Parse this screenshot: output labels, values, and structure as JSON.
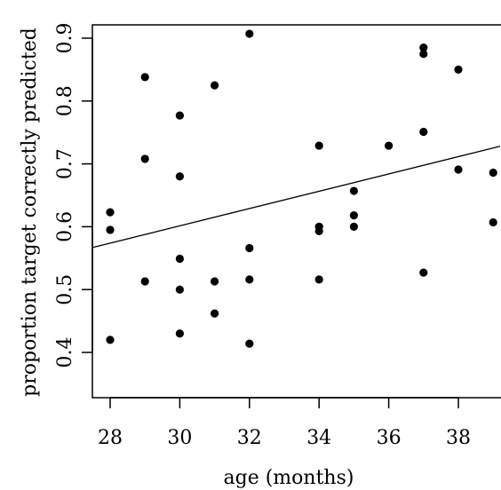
{
  "chart_data": {
    "type": "scatter",
    "xlabel": "age (months)",
    "ylabel": "proportion target correctly predicted",
    "xlim": [
      27.5,
      39.2
    ],
    "ylim": [
      0.33,
      0.925
    ],
    "xticks": [
      28,
      30,
      32,
      34,
      36,
      38
    ],
    "yticks": [
      0.4,
      0.5,
      0.6,
      0.7,
      0.8,
      0.9
    ],
    "xtick_labels": [
      "28",
      "30",
      "32",
      "34",
      "36",
      "38"
    ],
    "ytick_labels": [
      "0.4",
      "0.5",
      "0.6",
      "0.7",
      "0.8",
      "0.9"
    ],
    "grid": false,
    "points": [
      {
        "x": 28,
        "y": 0.623
      },
      {
        "x": 28,
        "y": 0.595
      },
      {
        "x": 28,
        "y": 0.42
      },
      {
        "x": 29,
        "y": 0.838
      },
      {
        "x": 29,
        "y": 0.708
      },
      {
        "x": 29,
        "y": 0.513
      },
      {
        "x": 30,
        "y": 0.777
      },
      {
        "x": 30,
        "y": 0.68
      },
      {
        "x": 30,
        "y": 0.549
      },
      {
        "x": 30,
        "y": 0.5
      },
      {
        "x": 30,
        "y": 0.43
      },
      {
        "x": 31,
        "y": 0.825
      },
      {
        "x": 31,
        "y": 0.513
      },
      {
        "x": 31,
        "y": 0.462
      },
      {
        "x": 32,
        "y": 0.907
      },
      {
        "x": 32,
        "y": 0.566
      },
      {
        "x": 32,
        "y": 0.516
      },
      {
        "x": 32,
        "y": 0.414
      },
      {
        "x": 34,
        "y": 0.729
      },
      {
        "x": 34,
        "y": 0.6
      },
      {
        "x": 34,
        "y": 0.593
      },
      {
        "x": 34,
        "y": 0.516
      },
      {
        "x": 35,
        "y": 0.657
      },
      {
        "x": 35,
        "y": 0.618
      },
      {
        "x": 35,
        "y": 0.6
      },
      {
        "x": 36,
        "y": 0.729
      },
      {
        "x": 37,
        "y": 0.885
      },
      {
        "x": 37,
        "y": 0.875
      },
      {
        "x": 37,
        "y": 0.751
      },
      {
        "x": 37,
        "y": 0.527
      },
      {
        "x": 38,
        "y": 0.85
      },
      {
        "x": 38,
        "y": 0.691
      },
      {
        "x": 39,
        "y": 0.686
      },
      {
        "x": 39,
        "y": 0.607
      }
    ],
    "fit_line": {
      "x": [
        27.5,
        39.2
      ],
      "y": [
        0.567,
        0.728
      ]
    }
  }
}
